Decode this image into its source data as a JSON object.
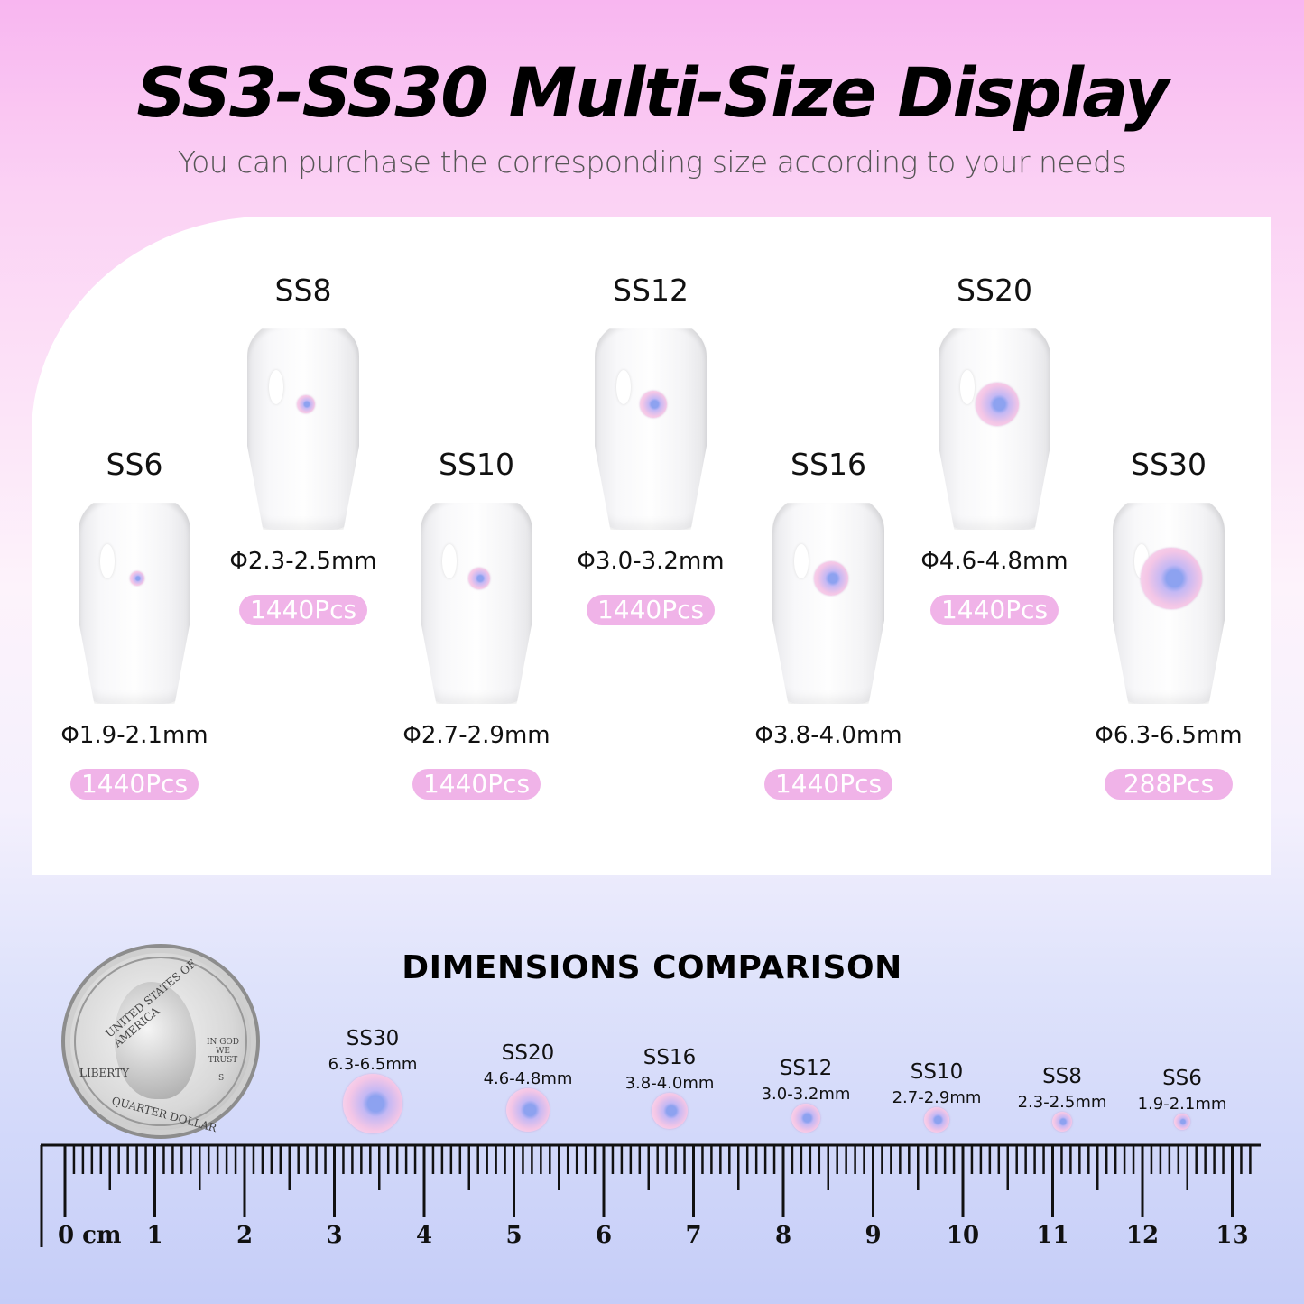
{
  "header": {
    "title": "SS3-SS30 Multi-Size Display",
    "subtitle": "You can purchase the corresponding size according to your needs"
  },
  "accent_colors": {
    "pill": "#f0b3e8",
    "pink_bg": "#f8b6f0",
    "blue_bg": "#c5cdf8"
  },
  "sizes": [
    {
      "label": "SS6",
      "dim": "Φ1.9-2.1mm",
      "count": "1440Pcs"
    },
    {
      "label": "SS8",
      "dim": "Φ2.3-2.5mm",
      "count": "1440Pcs"
    },
    {
      "label": "SS10",
      "dim": "Φ2.7-2.9mm",
      "count": "1440Pcs"
    },
    {
      "label": "SS12",
      "dim": "Φ3.0-3.2mm",
      "count": "1440Pcs"
    },
    {
      "label": "SS16",
      "dim": "Φ3.8-4.0mm",
      "count": "1440Pcs"
    },
    {
      "label": "SS20",
      "dim": "Φ4.6-4.8mm",
      "count": "1440Pcs"
    },
    {
      "label": "SS30",
      "dim": "Φ6.3-6.5mm",
      "count": "288Pcs"
    }
  ],
  "comparison": {
    "title": "DIMENSIONS COMPARISON",
    "coin_text": {
      "top": "UNITED STATES OF AMERICA",
      "motto": "IN GOD WE TRUST",
      "liberty": "LIBERTY",
      "bottom": "QUARTER DOLLAR",
      "mint": "S"
    },
    "items": [
      {
        "label": "SS30",
        "dim": "6.3-6.5mm"
      },
      {
        "label": "SS20",
        "dim": "4.6-4.8mm"
      },
      {
        "label": "SS16",
        "dim": "3.8-4.0mm"
      },
      {
        "label": "SS12",
        "dim": "3.0-3.2mm"
      },
      {
        "label": "SS10",
        "dim": "2.7-2.9mm"
      },
      {
        "label": "SS8",
        "dim": "2.3-2.5mm"
      },
      {
        "label": "SS6",
        "dim": "1.9-2.1mm"
      }
    ],
    "ruler": {
      "unit_label": "0 cm",
      "labels": [
        "1",
        "2",
        "3",
        "4",
        "5",
        "6",
        "7",
        "8",
        "9",
        "10",
        "11",
        "12",
        "13"
      ]
    }
  }
}
